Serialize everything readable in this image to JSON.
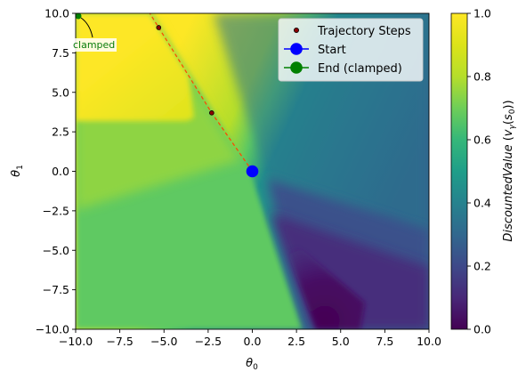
{
  "chart_data": {
    "type": "heatmap",
    "xlabel": "θ",
    "xlabel_sub": "0",
    "ylabel": "θ",
    "ylabel_sub": "1",
    "xlim": [
      -10,
      10
    ],
    "ylim": [
      -10,
      10
    ],
    "xticks": [
      "−10.0",
      "−7.5",
      "−5.0",
      "−2.5",
      "0.0",
      "2.5",
      "5.0",
      "7.5",
      "10.0"
    ],
    "yticks": [
      "−10.0",
      "−7.5",
      "−5.0",
      "−2.5",
      "0.0",
      "2.5",
      "5.0",
      "7.5",
      "10.0"
    ],
    "xtick_values": [
      -10,
      -7.5,
      -5,
      -2.5,
      0,
      2.5,
      5,
      7.5,
      10
    ],
    "ytick_values": [
      -10,
      -7.5,
      -5,
      -2.5,
      0,
      2.5,
      5,
      7.5,
      10
    ],
    "colormap": "viridis",
    "colorbar": {
      "label": "DiscountedValue (v_γ(s_0))",
      "label_main": "DiscountedValue",
      "label_paren_open": "(",
      "label_v": "v",
      "label_gamma": "γ",
      "label_s": "s",
      "label_zero": "0",
      "label_paren_close": "))",
      "range": [
        0.0,
        1.0
      ],
      "ticks": [
        "0.0",
        "0.2",
        "0.4",
        "0.6",
        "0.8",
        "1.0"
      ],
      "tick_values": [
        0.0,
        0.2,
        0.4,
        0.6,
        0.8,
        1.0
      ]
    },
    "series": [
      {
        "name": "Trajectory Steps",
        "kind": "scatter",
        "color": "#8b0000",
        "points": [
          [
            -5.3,
            9.1
          ],
          [
            -2.3,
            3.7
          ]
        ]
      },
      {
        "name": "Start",
        "kind": "marker",
        "color": "#0000ff",
        "points": [
          [
            0.0,
            0.0
          ]
        ]
      },
      {
        "name": "End (clamped)",
        "kind": "marker",
        "color": "#008000",
        "points": [
          [
            -10.0,
            10.0
          ]
        ]
      }
    ],
    "trajectory_line": {
      "color": "#ff4500",
      "style": "dashed",
      "points": [
        [
          0.0,
          0.0
        ],
        [
          -2.3,
          3.7
        ],
        [
          -5.3,
          9.1
        ],
        [
          -5.8,
          10.0
        ]
      ]
    },
    "annotation": {
      "text": "clamped",
      "target": [
        -10.0,
        10.0
      ]
    },
    "legend_position": "upper right"
  }
}
